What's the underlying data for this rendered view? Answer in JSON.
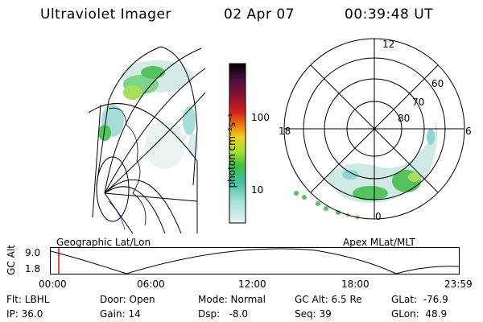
{
  "header": {
    "title": "Ultraviolet Imager",
    "date": "02 Apr 07",
    "time": "00:39:48 UT"
  },
  "colorbar": {
    "unit_label": "photon cm⁻²s⁻¹",
    "ticks": [
      "100",
      "10"
    ]
  },
  "polar_plot": {
    "mlt_labels": {
      "top": "12",
      "left": "18",
      "right": "6",
      "bottom": "0"
    },
    "lat_labels": [
      "60",
      "70",
      "80"
    ]
  },
  "panel_labels": {
    "left": "Geographic Lat/Lon",
    "right": "Apex MLat/MLT"
  },
  "altitude_plot": {
    "axis_title": "GC Alt",
    "y_ticks": [
      "9.0",
      "1.8"
    ],
    "x_ticks": [
      "00:00",
      "06:00",
      "12:00",
      "18:00",
      "23:59"
    ],
    "marker_time": "00:39:48"
  },
  "status": {
    "filter": "Flt: LBHL",
    "ip": "IP: 36.0",
    "door": "Door: Open",
    "gain": "Gain: 14",
    "mode": "Mode: Normal",
    "dsp": "Dsp:   -8.0",
    "gc_alt": "GC Alt: 6.5 Re",
    "seq": "Seq: 39",
    "glat": "GLat:  -76.9",
    "glon": "GLon:  48.9"
  },
  "colors": {
    "accent_marker": "#ff0000",
    "aurora_green": "#33cc33",
    "aurora_cyan": "#66ddcc"
  }
}
